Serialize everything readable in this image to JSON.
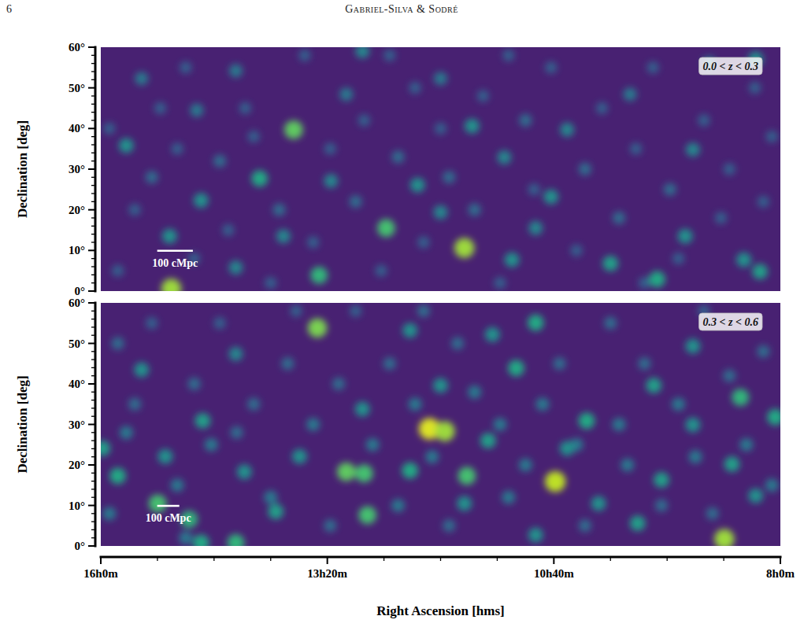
{
  "header": {
    "page": 6,
    "authors": "Gabriel-Silva & Sodré"
  },
  "chart_data": [
    {
      "type": "density_map",
      "title": "0.0 < z < 0.3",
      "ylabel": "Declination [deg]",
      "color": "viridis",
      "tick_labels": "y",
      "density_range": [
        0,
        1
      ],
      "xlim": [
        16,
        8
      ],
      "ylim": [
        0,
        60
      ],
      "yticks": [
        {
          "value": 0,
          "label": "0°"
        },
        {
          "value": 10,
          "label": "10°"
        },
        {
          "value": 20,
          "label": "20°"
        },
        {
          "value": 30,
          "label": "30°"
        },
        {
          "value": 40,
          "label": "40°"
        },
        {
          "value": 50,
          "label": "50°"
        },
        {
          "value": 60,
          "label": "60°"
        }
      ],
      "yminorticks": [
        2,
        4,
        6,
        8,
        12,
        14,
        16,
        18,
        22,
        24,
        26,
        28,
        32,
        34,
        36,
        38,
        42,
        44,
        46,
        48,
        52,
        54,
        56,
        58
      ],
      "scale_bar": {
        "label": "100 cMpc",
        "length": 0.42
      },
      "x": [
        15.8,
        15.6,
        15.4,
        15.3,
        15.0,
        14.9,
        14.6,
        14.5,
        14.3,
        14.2,
        13.9,
        13.6,
        13.5,
        13.3,
        13.0,
        12.9,
        12.7,
        12.5,
        12.3,
        12.2,
        12.0,
        11.9,
        11.6,
        11.5,
        11.3,
        11.0,
        10.9,
        10.7,
        10.4,
        10.3,
        10.1,
        9.9,
        9.7,
        9.5,
        9.3,
        9.2,
        8.9,
        8.7,
        8.6,
        8.3,
        8.2,
        8.1,
        15.9,
        15.1,
        14.0,
        12.6,
        11.2,
        9.6,
        13.73,
        14.13,
        12.64,
        11.72,
        15.17,
        13.43,
        15.19,
        15.7,
        14.82,
        12.27,
        11.63,
        11.25,
        10.7,
        10.0,
        9.45,
        9.12,
        8.43,
        8.24,
        8.29,
        9.03,
        12.92,
        14.41,
        15.52,
        11.16,
        10.51,
        10.88,
        12.0,
        13.29,
        13.11,
        14.87,
        9.77,
        8.84,
        12.0,
        13.85,
        14.41
      ],
      "y": [
        5,
        20,
        28,
        45,
        55,
        8,
        32,
        15,
        45,
        38,
        20,
        58,
        12,
        35,
        22,
        42,
        5,
        33,
        50,
        12,
        40,
        28,
        20,
        48,
        2,
        42,
        25,
        55,
        10,
        30,
        45,
        18,
        35,
        55,
        25,
        8,
        42,
        18,
        30,
        50,
        22,
        38,
        40,
        35,
        2,
        58,
        58,
        2,
        39.7,
        27.7,
        15.5,
        10.6,
        0.6,
        3.9,
        13.5,
        35.8,
        22.3,
        26.1,
        40.6,
        32.9,
        23.2,
        6.8,
        2.9,
        13.5,
        7.7,
        4.8,
        57.1,
        34.8,
        59.0,
        54.2,
        52.3,
        7.7,
        39.7,
        15.5,
        19.4,
        27.1,
        48.4,
        44.5,
        48.4,
        56.1,
        52.3,
        13.5,
        5.8
      ],
      "values": [
        0.3,
        0.3,
        0.35,
        0.3,
        0.3,
        0.3,
        0.35,
        0.3,
        0.3,
        0.3,
        0.35,
        0.3,
        0.3,
        0.3,
        0.35,
        0.3,
        0.3,
        0.35,
        0.3,
        0.3,
        0.3,
        0.35,
        0.35,
        0.3,
        0.3,
        0.35,
        0.3,
        0.3,
        0.3,
        0.35,
        0.3,
        0.35,
        0.3,
        0.3,
        0.35,
        0.3,
        0.3,
        0.3,
        0.3,
        0.3,
        0.3,
        0.3,
        0.3,
        0.3,
        0.3,
        0.3,
        0.3,
        0.3,
        0.75,
        0.6,
        0.7,
        0.85,
        0.85,
        0.65,
        0.5,
        0.5,
        0.5,
        0.5,
        0.5,
        0.45,
        0.5,
        0.55,
        0.6,
        0.5,
        0.5,
        0.55,
        0.5,
        0.45,
        0.45,
        0.4,
        0.4,
        0.5,
        0.45,
        0.45,
        0.45,
        0.45,
        0.4,
        0.4,
        0.4,
        0.4,
        0.4,
        0.45,
        0.45
      ]
    },
    {
      "type": "density_map",
      "title": "0.3 < z < 0.6",
      "ylabel": "Declination [deg]",
      "xlabel": "Right Ascension [hms]",
      "color": "viridis",
      "density_range": [
        0,
        1
      ],
      "xlim": [
        16,
        8
      ],
      "ylim": [
        0,
        60
      ],
      "xticks": [
        {
          "value": 16,
          "label": "16h0m"
        },
        {
          "value": 13.3333,
          "label": "13h20m"
        },
        {
          "value": 10.6667,
          "label": "10h40m"
        },
        {
          "value": 8,
          "label": "8h0m"
        }
      ],
      "xminorticks": [
        15.3333,
        14.6667,
        14,
        12.6667,
        12,
        11.3333,
        10,
        9.3333,
        8.6667
      ],
      "yticks": [
        {
          "value": 0,
          "label": "0°"
        },
        {
          "value": 10,
          "label": "10°"
        },
        {
          "value": 20,
          "label": "20°"
        },
        {
          "value": 30,
          "label": "30°"
        },
        {
          "value": 40,
          "label": "40°"
        },
        {
          "value": 50,
          "label": "50°"
        },
        {
          "value": 60,
          "label": "60°"
        }
      ],
      "yminorticks": [
        2,
        4,
        6,
        8,
        12,
        14,
        16,
        18,
        22,
        24,
        26,
        28,
        32,
        34,
        36,
        38,
        42,
        44,
        46,
        48,
        52,
        54,
        56,
        58
      ],
      "scale_bar": {
        "label": "100 cMpc",
        "length": 0.26
      },
      "x": [
        15.8,
        15.6,
        15.4,
        15.1,
        14.9,
        14.7,
        14.6,
        14.2,
        14.0,
        13.8,
        13.5,
        13.3,
        13.2,
        13.0,
        12.8,
        12.6,
        12.5,
        12.3,
        12.1,
        11.9,
        11.8,
        11.6,
        11.3,
        11.2,
        11.0,
        10.8,
        10.6,
        10.4,
        10.3,
        10.0,
        9.9,
        9.8,
        9.6,
        9.4,
        9.2,
        9.0,
        8.9,
        8.8,
        8.6,
        8.4,
        8.2,
        8.1,
        15.9,
        15.7,
        15.0,
        14.4,
        13.7,
        12.2,
        13.45,
        12.13,
        11.95,
        13.11,
        12.9,
        10.65,
        11.69,
        12.86,
        8.66,
        15.33,
        14.96,
        14.41,
        14.82,
        15.8,
        15.98,
        14.8,
        12.36,
        11.11,
        10.88,
        11.39,
        10.28,
        9.49,
        8.47,
        8.06,
        9.03,
        9.4,
        9.68,
        10.14,
        8.57,
        11.44,
        12.0,
        10.51,
        13.94,
        13.66,
        14.31,
        15.24,
        12.36,
        14.41,
        15.52,
        12.92,
        11.72,
        10.88,
        8.29,
        9.03
      ],
      "y": [
        50,
        35,
        55,
        15,
        40,
        25,
        55,
        35,
        12,
        45,
        30,
        5,
        40,
        58,
        25,
        45,
        10,
        35,
        22,
        5,
        50,
        38,
        30,
        12,
        20,
        35,
        45,
        25,
        5,
        55,
        30,
        20,
        45,
        10,
        35,
        22,
        58,
        8,
        42,
        25,
        48,
        15,
        8,
        28,
        2,
        28,
        58,
        58,
        53.8,
        28.9,
        28.3,
        18.3,
        17.9,
        15.9,
        17.3,
        7.6,
        1.7,
        10.5,
        6.6,
        0.8,
        0.8,
        17.3,
        24.1,
        30.9,
        18.6,
        43.9,
        55.1,
        52.2,
        30.9,
        39.6,
        36.7,
        31.8,
        29.9,
        16.3,
        5.6,
        10.5,
        20.2,
        26.0,
        39.6,
        24.1,
        8.5,
        22.1,
        18.3,
        22.1,
        53.2,
        47.4,
        43.5,
        33.8,
        10.5,
        2.7,
        12.4,
        49.3
      ],
      "values": [
        0.35,
        0.35,
        0.3,
        0.4,
        0.35,
        0.4,
        0.3,
        0.35,
        0.4,
        0.35,
        0.4,
        0.35,
        0.35,
        0.3,
        0.4,
        0.35,
        0.4,
        0.4,
        0.4,
        0.35,
        0.35,
        0.4,
        0.4,
        0.4,
        0.4,
        0.4,
        0.35,
        0.4,
        0.35,
        0.35,
        0.4,
        0.4,
        0.35,
        0.35,
        0.4,
        0.4,
        0.3,
        0.35,
        0.35,
        0.4,
        0.35,
        0.4,
        0.4,
        0.4,
        0.4,
        0.35,
        0.3,
        0.35,
        0.8,
        0.95,
        0.85,
        0.75,
        0.7,
        0.9,
        0.7,
        0.7,
        0.85,
        0.7,
        0.65,
        0.65,
        0.6,
        0.6,
        0.55,
        0.55,
        0.6,
        0.6,
        0.6,
        0.5,
        0.6,
        0.55,
        0.65,
        0.6,
        0.5,
        0.55,
        0.55,
        0.5,
        0.55,
        0.55,
        0.5,
        0.5,
        0.55,
        0.5,
        0.5,
        0.5,
        0.5,
        0.45,
        0.5,
        0.5,
        0.5,
        0.5,
        0.5,
        0.5
      ]
    }
  ]
}
